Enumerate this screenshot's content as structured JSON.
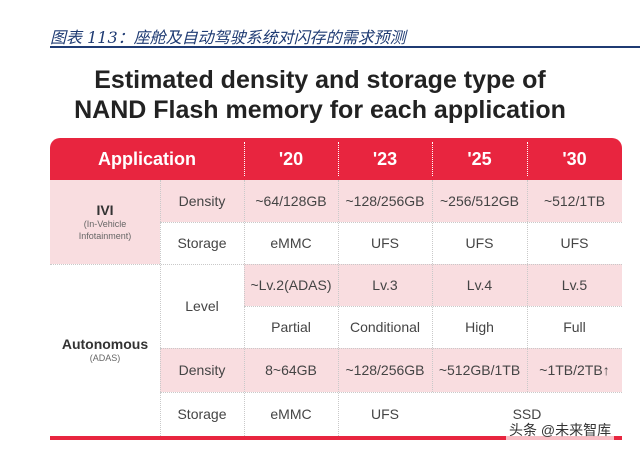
{
  "caption": "图表 113：座舱及自动驾驶系统对闪存的需求预测",
  "title_line1": "Estimated density and storage type of",
  "title_line2": "NAND Flash memory for each application",
  "header": {
    "application": "Application",
    "years": [
      "'20",
      "'23",
      "'25",
      "'30"
    ]
  },
  "ivi": {
    "name": "IVI",
    "sub_line1": "(In-Vehicle",
    "sub_line2": "Infotainment)",
    "density_label": "Density",
    "density": [
      "~64/128GB",
      "~128/256GB",
      "~256/512GB",
      "~512/1TB"
    ],
    "storage_label": "Storage",
    "storage": [
      "eMMC",
      "UFS",
      "UFS",
      "UFS"
    ]
  },
  "autonomous": {
    "name": "Autonomous",
    "sub": "(ADAS)",
    "level_label": "Level",
    "level": [
      "~Lv.2(ADAS)",
      "Lv.3",
      "Lv.4",
      "Lv.5"
    ],
    "automation": [
      "Partial",
      "Conditional",
      "High",
      "Full"
    ],
    "density_label": "Density",
    "density": [
      "8~64GB",
      "~128/256GB",
      "~512GB/1TB",
      "~1TB/2TB↑"
    ],
    "storage_label": "Storage",
    "storage": [
      "eMMC",
      "UFS",
      "SSD"
    ]
  },
  "watermark": "头条 @未来智库",
  "colors": {
    "accent": "#e8253f",
    "pink": "#f9dde0",
    "caption": "#1f3b73"
  }
}
